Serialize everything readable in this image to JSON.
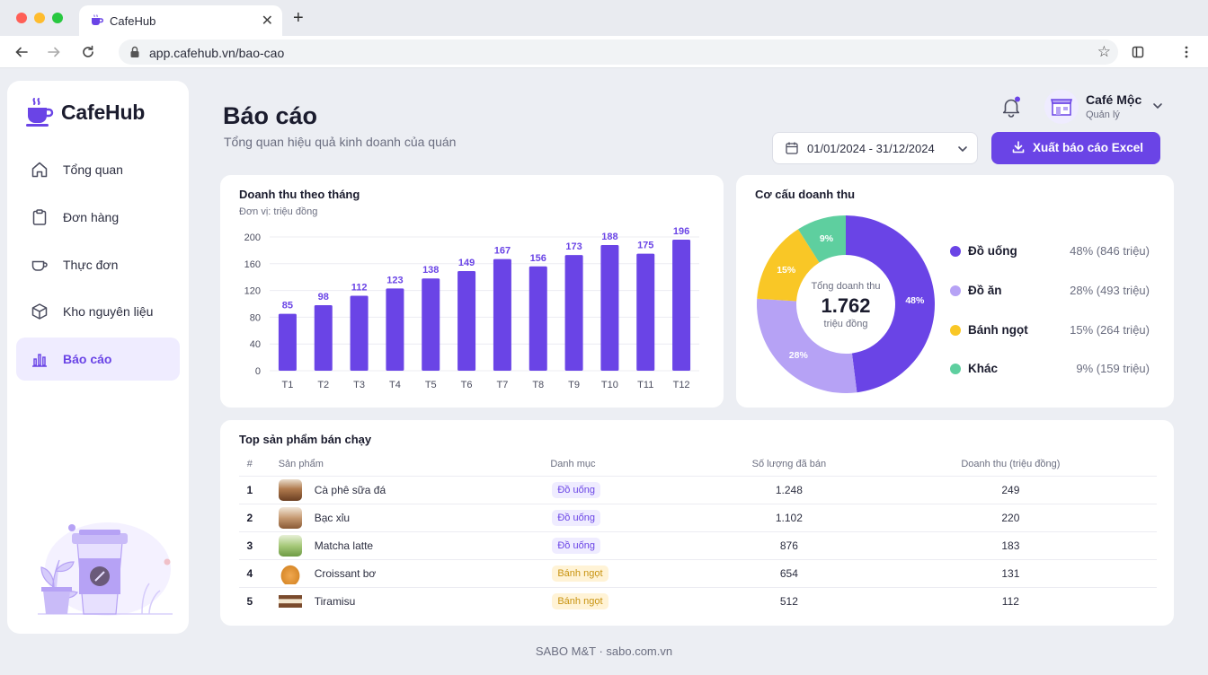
{
  "browser": {
    "tab_title": "CafeHub",
    "url": "app.cafehub.vn/bao-cao"
  },
  "sidebar": {
    "brand": "CafeHub",
    "items": [
      {
        "label": "Tổng quan",
        "icon": "home-icon"
      },
      {
        "label": "Đơn hàng",
        "icon": "clipboard-icon"
      },
      {
        "label": "Thực đơn",
        "icon": "coffee-cup-icon"
      },
      {
        "label": "Kho nguyên liệu",
        "icon": "box-icon"
      },
      {
        "label": "Báo cáo",
        "icon": "bar-chart-icon",
        "active": true
      }
    ]
  },
  "header": {
    "title": "Báo cáo",
    "subtitle": "Tổng quan hiệu quả kinh doanh của quán",
    "user_name": "Café Mộc",
    "user_role": "Quản lý",
    "date_range": "01/01/2024 - 31/12/2024",
    "export_label": "Xuất báo cáo Excel"
  },
  "bar_card": {
    "title": "Doanh thu theo tháng",
    "unit": "Đơn vị: triệu đồng"
  },
  "pie_card": {
    "title": "Cơ cấu doanh thu",
    "center_label": "Tổng doanh thu",
    "center_value": "1.762",
    "center_unit": "triệu đồng",
    "legend": [
      {
        "name": "Đồ uống",
        "value_text": "48% (846 triệu)"
      },
      {
        "name": "Đồ ăn",
        "value_text": "28% (493 triệu)"
      },
      {
        "name": "Bánh ngọt",
        "value_text": "15% (264 triệu)"
      },
      {
        "name": "Khác",
        "value_text": "9% (159 triệu)"
      }
    ]
  },
  "table": {
    "title": "Top sản phẩm bán chạy",
    "columns": [
      "#",
      "Sản phẩm",
      "Danh mục",
      "Số lượng đã bán",
      "Doanh thu (triệu đồng)"
    ],
    "rows": [
      {
        "idx": "1",
        "product": "Cà phê sữa đá",
        "category": "Đồ uống",
        "qty": "1.248",
        "revenue": "249"
      },
      {
        "idx": "2",
        "product": "Bạc xỉu",
        "category": "Đồ uống",
        "qty": "1.102",
        "revenue": "220"
      },
      {
        "idx": "3",
        "product": "Matcha latte",
        "category": "Đồ uống",
        "qty": "876",
        "revenue": "183"
      },
      {
        "idx": "4",
        "product": "Croissant bơ",
        "category": "Bánh ngọt",
        "qty": "654",
        "revenue": "131"
      },
      {
        "idx": "5",
        "product": "Tiramisu",
        "category": "Bánh ngọt",
        "qty": "512",
        "revenue": "112"
      }
    ]
  },
  "footer": "SABO M&T  ·  sabo.com.vn",
  "colors": {
    "accent": "#6a44e6",
    "accent_light": "#b6a2f5",
    "yellow": "#f9c726",
    "green": "#5ecf9f",
    "text": "#1b1c2e",
    "muted": "#6b6e80"
  },
  "chart_data": [
    {
      "type": "bar",
      "title": "Doanh thu theo tháng",
      "subtitle": "Đơn vị: triệu đồng",
      "categories": [
        "T1",
        "T2",
        "T3",
        "T4",
        "T5",
        "T6",
        "T7",
        "T8",
        "T9",
        "T10",
        "T11",
        "T12"
      ],
      "values": [
        85,
        98,
        112,
        123,
        138,
        149,
        167,
        156,
        173,
        188,
        175,
        196
      ],
      "ylim": [
        0,
        200
      ],
      "yticks": [
        0,
        40,
        80,
        120,
        160,
        200
      ],
      "grid": true,
      "color": "#6a44e6"
    },
    {
      "type": "pie",
      "title": "Cơ cấu doanh thu",
      "labels": [
        "Đồ uống",
        "Đồ ăn",
        "Bánh ngọt",
        "Khác"
      ],
      "values": [
        48,
        28,
        15,
        9
      ],
      "amounts": [
        846,
        493,
        264,
        159
      ],
      "slice_labels": [
        "48%",
        "28%",
        "15%",
        "9%"
      ],
      "colors": [
        "#6a44e6",
        "#b6a2f5",
        "#f9c726",
        "#5ecf9f"
      ],
      "donut": true,
      "legend": "right"
    }
  ]
}
